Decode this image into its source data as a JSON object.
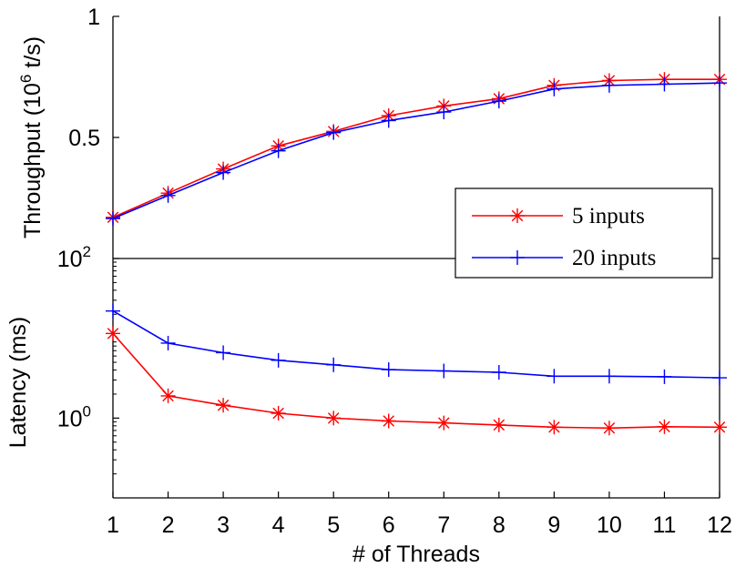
{
  "chart_data": [
    {
      "type": "line",
      "panel": "top",
      "ylabel": "Throughput (10^6 t/s)",
      "ylabel_main": "Throughput (10",
      "ylabel_exp": "6",
      "ylabel_tail": " t/s)",
      "xlabel": "",
      "x": [
        1,
        2,
        3,
        4,
        5,
        6,
        7,
        8,
        9,
        10,
        11,
        12
      ],
      "xlim": [
        1,
        12
      ],
      "ylim": [
        0.0,
        1.0
      ],
      "yticks": [
        0.5,
        1
      ],
      "ytick_labels": [
        "0.5",
        "1"
      ],
      "series": [
        {
          "name": "5 inputs",
          "color": "#ff0000",
          "marker": "asterisk",
          "values": [
            0.17,
            0.27,
            0.37,
            0.465,
            0.525,
            0.59,
            0.63,
            0.66,
            0.715,
            0.735,
            0.74,
            0.74
          ]
        },
        {
          "name": "20 inputs",
          "color": "#0000ff",
          "marker": "plus",
          "values": [
            0.165,
            0.26,
            0.355,
            0.445,
            0.52,
            0.57,
            0.605,
            0.65,
            0.7,
            0.715,
            0.72,
            0.725
          ]
        }
      ]
    },
    {
      "type": "line",
      "panel": "bottom",
      "yscale": "log",
      "ylabel": "Latency (ms)",
      "xlabel": "# of Threads",
      "x": [
        1,
        2,
        3,
        4,
        5,
        6,
        7,
        8,
        9,
        10,
        11,
        12
      ],
      "x_tick_labels": [
        "1",
        "2",
        "3",
        "4",
        "5",
        "6",
        "7",
        "8",
        "9",
        "10",
        "11",
        "12"
      ],
      "xlim": [
        1,
        12
      ],
      "ylim": [
        0.1,
        100
      ],
      "yticks": [
        1,
        100
      ],
      "ytick_base": "10",
      "ytick_exps": [
        "0",
        "2"
      ],
      "series": [
        {
          "name": "5 inputs",
          "color": "#ff0000",
          "marker": "asterisk",
          "values": [
            11.5,
            1.9,
            1.45,
            1.15,
            1.0,
            0.92,
            0.87,
            0.82,
            0.77,
            0.75,
            0.78,
            0.77
          ]
        },
        {
          "name": "20 inputs",
          "color": "#0000ff",
          "marker": "plus",
          "values": [
            22.0,
            8.7,
            6.6,
            5.3,
            4.65,
            4.05,
            3.9,
            3.75,
            3.35,
            3.35,
            3.3,
            3.2
          ]
        }
      ]
    }
  ],
  "legend": {
    "entries": [
      "5 inputs",
      "20 inputs"
    ],
    "placement": "right, between panels"
  }
}
